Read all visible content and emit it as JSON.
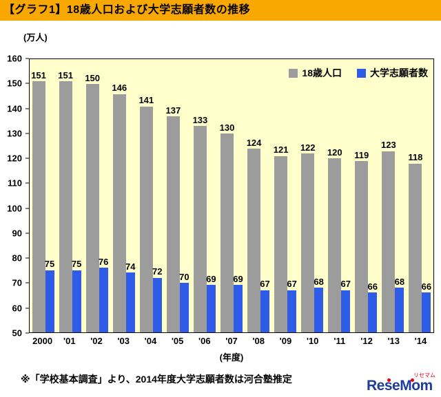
{
  "title": "【グラフ1】18歳人口および大学志願者数の推移",
  "footnote": "※「学校基本調査」より、2014年度大学志願者数は河合塾推定",
  "logo": {
    "text": "ReseMom",
    "sub": "リセマム"
  },
  "chart_data": {
    "type": "bar",
    "title": "【グラフ1】18歳人口および大学志願者数の推移",
    "categories": [
      "2000",
      "'01",
      "'02",
      "'03",
      "'04",
      "'05",
      "'06",
      "'07",
      "'08",
      "'09",
      "'10",
      "'11",
      "'12",
      "'13",
      "'14"
    ],
    "series": [
      {
        "name": "18歳人口",
        "color": "#9c9c9c",
        "values": [
          151,
          151,
          150,
          146,
          141,
          137,
          133,
          130,
          124,
          121,
          122,
          120,
          119,
          123,
          118
        ]
      },
      {
        "name": "大学志願者数",
        "color": "#2e5ce6",
        "values": [
          75,
          75,
          76,
          74,
          72,
          70,
          69,
          69,
          67,
          67,
          68,
          67,
          66,
          68,
          66
        ]
      }
    ],
    "ylabel": "(万人)",
    "xlabel": "(年度)",
    "ylim": [
      50,
      160
    ],
    "yticks": [
      160,
      150,
      140,
      130,
      120,
      110,
      100,
      90,
      80,
      70,
      60,
      50
    ],
    "grid": false,
    "legend_position": "top-right",
    "plot_background": "#ffffcc"
  },
  "colors": {
    "title_bg": "#f8a800",
    "bar_gray": "#9c9c9c",
    "bar_blue": "#2e5ce6",
    "plot_bg": "#ffffcc",
    "logo_blue": "#1d3c9b",
    "logo_red": "#e60012"
  }
}
